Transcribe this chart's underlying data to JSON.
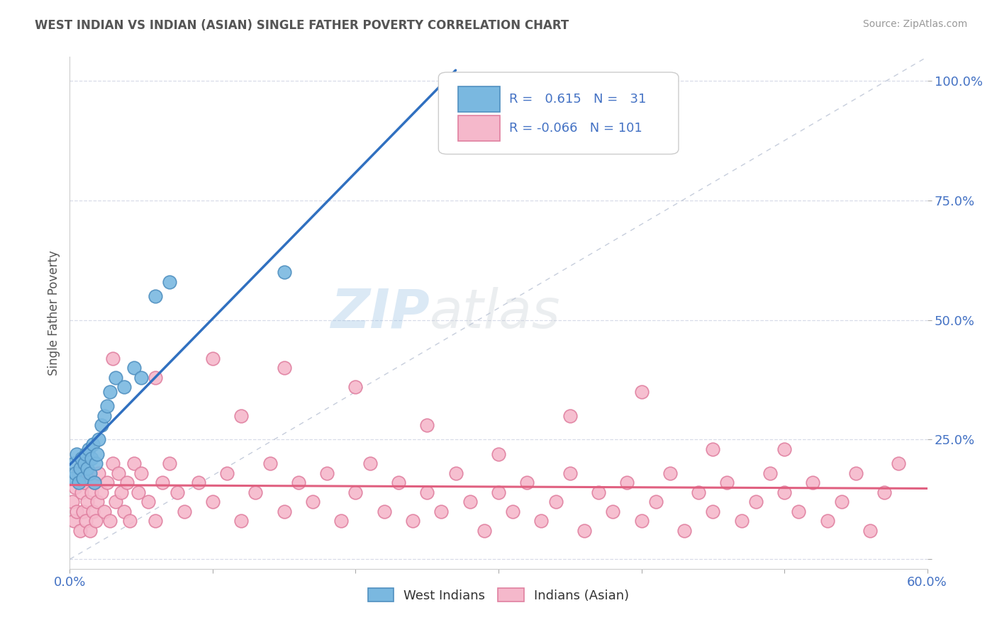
{
  "title": "WEST INDIAN VS INDIAN (ASIAN) SINGLE FATHER POVERTY CORRELATION CHART",
  "source": "Source: ZipAtlas.com",
  "ylabel": "Single Father Poverty",
  "xlim": [
    0.0,
    0.6
  ],
  "ylim": [
    -0.02,
    1.05
  ],
  "xtick_positions": [
    0.0,
    0.1,
    0.2,
    0.3,
    0.4,
    0.5,
    0.6
  ],
  "xticklabels": [
    "0.0%",
    "",
    "",
    "",
    "",
    "",
    "60.0%"
  ],
  "ytick_positions": [
    0.0,
    0.25,
    0.5,
    0.75,
    1.0
  ],
  "yticklabels": [
    "",
    "25.0%",
    "50.0%",
    "75.0%",
    "100.0%"
  ],
  "west_indian_R": 0.615,
  "west_indian_N": 31,
  "indian_asian_R": -0.066,
  "indian_asian_N": 101,
  "west_indian_dot_color": "#7ab8e0",
  "west_indian_edge_color": "#5090c0",
  "indian_asian_dot_color": "#f5b8cb",
  "indian_asian_edge_color": "#e080a0",
  "regression_blue": "#3070c0",
  "regression_pink": "#e06080",
  "diagonal_color": "#c0c8d8",
  "watermark_zip": "ZIP",
  "watermark_atlas": "atlas",
  "background_color": "#ffffff",
  "grid_color": "#d8dce8",
  "west_indian_x": [
    0.002,
    0.003,
    0.004,
    0.005,
    0.006,
    0.007,
    0.008,
    0.009,
    0.01,
    0.011,
    0.012,
    0.013,
    0.014,
    0.015,
    0.016,
    0.017,
    0.018,
    0.019,
    0.02,
    0.022,
    0.024,
    0.026,
    0.028,
    0.032,
    0.038,
    0.045,
    0.05,
    0.06,
    0.07,
    0.15,
    0.27
  ],
  "west_indian_y": [
    0.17,
    0.2,
    0.18,
    0.22,
    0.16,
    0.19,
    0.21,
    0.17,
    0.2,
    0.22,
    0.19,
    0.23,
    0.18,
    0.21,
    0.24,
    0.16,
    0.2,
    0.22,
    0.25,
    0.28,
    0.3,
    0.32,
    0.35,
    0.38,
    0.36,
    0.4,
    0.38,
    0.55,
    0.58,
    0.6,
    0.95
  ],
  "indian_asian_x": [
    0.002,
    0.003,
    0.004,
    0.005,
    0.006,
    0.007,
    0.008,
    0.009,
    0.01,
    0.011,
    0.012,
    0.013,
    0.014,
    0.015,
    0.016,
    0.017,
    0.018,
    0.019,
    0.02,
    0.022,
    0.024,
    0.026,
    0.028,
    0.03,
    0.032,
    0.034,
    0.036,
    0.038,
    0.04,
    0.042,
    0.045,
    0.048,
    0.05,
    0.055,
    0.06,
    0.065,
    0.07,
    0.075,
    0.08,
    0.09,
    0.1,
    0.11,
    0.12,
    0.13,
    0.14,
    0.15,
    0.16,
    0.17,
    0.18,
    0.19,
    0.2,
    0.21,
    0.22,
    0.23,
    0.24,
    0.25,
    0.26,
    0.27,
    0.28,
    0.29,
    0.3,
    0.31,
    0.32,
    0.33,
    0.34,
    0.35,
    0.36,
    0.37,
    0.38,
    0.39,
    0.4,
    0.41,
    0.42,
    0.43,
    0.44,
    0.45,
    0.46,
    0.47,
    0.48,
    0.49,
    0.5,
    0.51,
    0.52,
    0.53,
    0.54,
    0.55,
    0.56,
    0.57,
    0.58,
    0.03,
    0.06,
    0.1,
    0.15,
    0.2,
    0.3,
    0.4,
    0.5,
    0.12,
    0.25,
    0.35,
    0.45
  ],
  "indian_asian_y": [
    0.12,
    0.08,
    0.15,
    0.1,
    0.18,
    0.06,
    0.14,
    0.1,
    0.16,
    0.08,
    0.12,
    0.18,
    0.06,
    0.14,
    0.1,
    0.16,
    0.08,
    0.12,
    0.18,
    0.14,
    0.1,
    0.16,
    0.08,
    0.2,
    0.12,
    0.18,
    0.14,
    0.1,
    0.16,
    0.08,
    0.2,
    0.14,
    0.18,
    0.12,
    0.08,
    0.16,
    0.2,
    0.14,
    0.1,
    0.16,
    0.12,
    0.18,
    0.08,
    0.14,
    0.2,
    0.1,
    0.16,
    0.12,
    0.18,
    0.08,
    0.14,
    0.2,
    0.1,
    0.16,
    0.08,
    0.14,
    0.1,
    0.18,
    0.12,
    0.06,
    0.14,
    0.1,
    0.16,
    0.08,
    0.12,
    0.18,
    0.06,
    0.14,
    0.1,
    0.16,
    0.08,
    0.12,
    0.18,
    0.06,
    0.14,
    0.1,
    0.16,
    0.08,
    0.12,
    0.18,
    0.14,
    0.1,
    0.16,
    0.08,
    0.12,
    0.18,
    0.06,
    0.14,
    0.2,
    0.42,
    0.38,
    0.42,
    0.4,
    0.36,
    0.22,
    0.35,
    0.23,
    0.3,
    0.28,
    0.3,
    0.23
  ]
}
